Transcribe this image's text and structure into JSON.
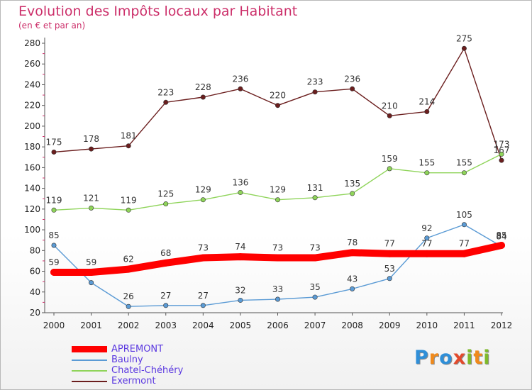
{
  "header": {
    "title": "Evolution des Impôts locaux par Habitant",
    "subtitle": "(en € et par an)"
  },
  "logo": {
    "letters": [
      {
        "char": "P",
        "color": "#2f8fd8"
      },
      {
        "char": "r",
        "color": "#f08a1c"
      },
      {
        "char": "o",
        "color": "#2f8fd8"
      },
      {
        "char": "x",
        "color": "#e34a2c"
      },
      {
        "char": "i",
        "color": "#7fba2a"
      },
      {
        "char": "t",
        "color": "#f08a1c"
      },
      {
        "char": "i",
        "color": "#7fba2a"
      }
    ]
  },
  "chart_data": {
    "type": "line",
    "title": "Evolution des Impôts locaux par Habitant",
    "subtitle": "(en € et par an)",
    "categories": [
      "2000",
      "2001",
      "2002",
      "2003",
      "2004",
      "2005",
      "2006",
      "2007",
      "2008",
      "2009",
      "2010",
      "2011",
      "2012"
    ],
    "ylim": [
      20,
      280
    ],
    "yticks": [
      20,
      40,
      60,
      80,
      100,
      120,
      140,
      160,
      180,
      200,
      220,
      240,
      260,
      280
    ],
    "grid": false,
    "legend_position": "bottom-left",
    "series": [
      {
        "name": "Exermont",
        "color": "#6b1e1e",
        "values": [
          175,
          178,
          181,
          223,
          228,
          236,
          220,
          233,
          236,
          210,
          214,
          275,
          167
        ]
      },
      {
        "name": "Chatel-Chéhéry",
        "color": "#8fd45a",
        "values": [
          119,
          121,
          119,
          125,
          129,
          136,
          129,
          131,
          135,
          159,
          155,
          155,
          173
        ]
      },
      {
        "name": "Baulny",
        "color": "#5b9bd5",
        "values": [
          85,
          49,
          26,
          27,
          27,
          32,
          33,
          35,
          43,
          53,
          92,
          105,
          84
        ]
      },
      {
        "name": "APREMONT",
        "color": "#ff0000",
        "values": [
          59,
          59,
          62,
          68,
          73,
          74,
          73,
          73,
          78,
          77,
          77,
          77,
          85
        ]
      }
    ],
    "legend_order": [
      "APREMONT",
      "Baulny",
      "Chatel-Chéhéry",
      "Exermont"
    ]
  }
}
